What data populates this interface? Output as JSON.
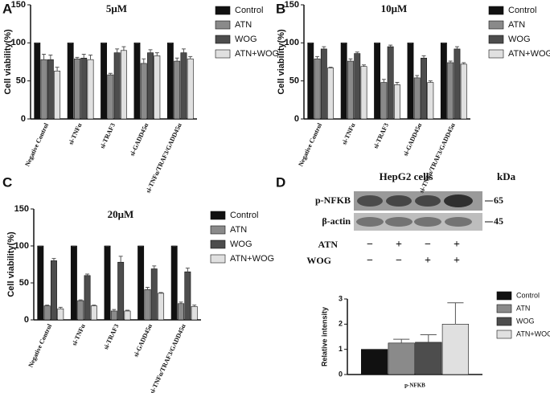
{
  "chart_data": [
    {
      "type": "bar",
      "panel": "A",
      "title": "5μM",
      "ylabel": "Cell viability(%)",
      "categories": [
        "Negative Control",
        "si-TNFα",
        "si-TRAF3",
        "si-GADD45α",
        "si-TNFα/TRAF3/GADD45α"
      ],
      "ylim": [
        0,
        150
      ],
      "yticks": [
        0,
        50,
        100,
        150
      ],
      "legend": "right",
      "series": [
        {
          "name": "Control",
          "color": "#111111",
          "values": [
            100,
            100,
            100,
            100,
            100
          ],
          "errors": [
            0,
            0,
            0,
            0,
            0
          ]
        },
        {
          "name": "ATN",
          "color": "#8a8a8a",
          "values": [
            78,
            79,
            58,
            73,
            76
          ],
          "errors": [
            7,
            2,
            2,
            6,
            4
          ]
        },
        {
          "name": "WOG",
          "color": "#4d4d4d",
          "values": [
            78,
            80,
            87,
            87,
            87
          ],
          "errors": [
            6,
            5,
            5,
            4,
            5
          ]
        },
        {
          "name": "ATN+WOG",
          "color": "#e0e0e0",
          "values": [
            63,
            78,
            90,
            83,
            79
          ],
          "errors": [
            5,
            6,
            5,
            4,
            3
          ]
        }
      ]
    },
    {
      "type": "bar",
      "panel": "B",
      "title": "10μM",
      "ylabel": "Cell viability(%)",
      "categories": [
        "Negative Control",
        "si-TNFα",
        "si-TRAF3",
        "si-GADD45α",
        "si-TNFα/TRAF3/GADD45α"
      ],
      "ylim": [
        0,
        150
      ],
      "yticks": [
        0,
        50,
        100,
        150
      ],
      "legend": "right",
      "series": [
        {
          "name": "Control",
          "color": "#111111",
          "values": [
            100,
            100,
            100,
            100,
            100
          ],
          "errors": [
            0,
            0,
            0,
            0,
            0
          ]
        },
        {
          "name": "ATN",
          "color": "#8a8a8a",
          "values": [
            79,
            76,
            48,
            54,
            74
          ],
          "errors": [
            3,
            3,
            4,
            3,
            2
          ]
        },
        {
          "name": "WOG",
          "color": "#4d4d4d",
          "values": [
            92,
            86,
            95,
            80,
            92
          ],
          "errors": [
            3,
            2,
            2,
            3,
            3
          ]
        },
        {
          "name": "ATN+WOG",
          "color": "#e0e0e0",
          "values": [
            67,
            69,
            45,
            48,
            72
          ],
          "errors": [
            1,
            2,
            3,
            2,
            2
          ]
        }
      ]
    },
    {
      "type": "bar",
      "panel": "C",
      "title": "20μM",
      "ylabel": "Cell viability(%)",
      "categories": [
        "Negative Control",
        "si-TNFα",
        "si-TRAF3",
        "si-GADD45α",
        "si-TNFα/TRAF3/GADD45α"
      ],
      "ylim": [
        0,
        150
      ],
      "yticks": [
        0,
        50,
        100,
        150
      ],
      "legend": "right",
      "series": [
        {
          "name": "Control",
          "color": "#111111",
          "values": [
            100,
            100,
            100,
            100,
            100
          ],
          "errors": [
            0,
            0,
            0,
            0,
            0
          ]
        },
        {
          "name": "ATN",
          "color": "#8a8a8a",
          "values": [
            19,
            26,
            12,
            41,
            22
          ],
          "errors": [
            1,
            1,
            2,
            3,
            2
          ]
        },
        {
          "name": "WOG",
          "color": "#4d4d4d",
          "values": [
            80,
            60,
            78,
            69,
            65
          ],
          "errors": [
            3,
            2,
            8,
            4,
            5
          ]
        },
        {
          "name": "ATN+WOG",
          "color": "#e0e0e0",
          "values": [
            15,
            19,
            12,
            36,
            18
          ],
          "errors": [
            2,
            1,
            1,
            1,
            2
          ]
        }
      ]
    },
    {
      "type": "bar",
      "panel": "D",
      "ylabel": "Relative intensity",
      "categories": [
        "p-NFKB"
      ],
      "ylim": [
        0,
        3
      ],
      "yticks": [
        0,
        1,
        2,
        3
      ],
      "legend": "right",
      "series": [
        {
          "name": "Control",
          "color": "#111111",
          "values": [
            1
          ],
          "errors": [
            0
          ]
        },
        {
          "name": "ATN",
          "color": "#8a8a8a",
          "values": [
            1.25
          ],
          "errors": [
            0.15
          ]
        },
        {
          "name": "WOG",
          "color": "#4d4d4d",
          "values": [
            1.28
          ],
          "errors": [
            0.3
          ]
        },
        {
          "name": "ATN+WOG",
          "color": "#e0e0e0",
          "values": [
            2.0
          ],
          "errors": [
            0.85
          ]
        }
      ]
    }
  ],
  "blot": {
    "title": "HepG2  cells",
    "unit": "kDa",
    "bands": [
      {
        "name": "p-NFKB",
        "kda": 65
      },
      {
        "name": "β-actin",
        "kda": 45
      }
    ],
    "treatments": [
      {
        "name": "ATN",
        "signs": [
          "−",
          "+",
          "−",
          "+"
        ]
      },
      {
        "name": "WOG",
        "signs": [
          "−",
          "−",
          "+",
          "+"
        ]
      }
    ]
  }
}
